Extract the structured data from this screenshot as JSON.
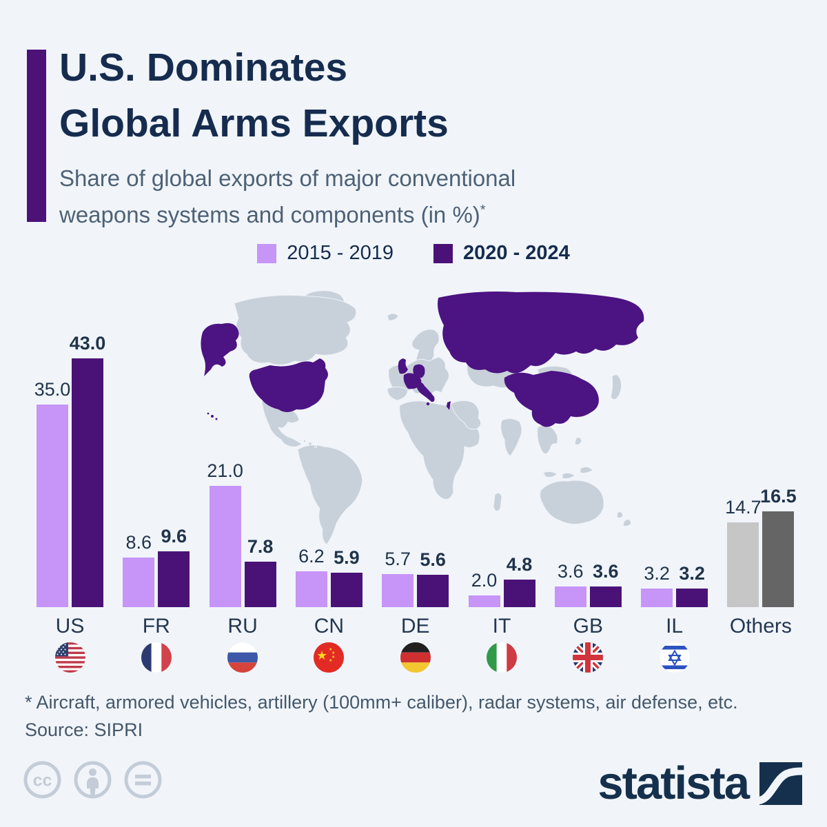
{
  "header": {
    "title_line1": "U.S. Dominates",
    "title_line2": "Global Arms Exports",
    "subtitle_line1": "Share of global exports of major conventional",
    "subtitle_line2": "weapons systems and components (in %)",
    "subtitle_footnote_marker": "*"
  },
  "legend": {
    "items": [
      {
        "label": "2015 - 2019",
        "color": "#c794f8",
        "bold": false
      },
      {
        "label": "2020 - 2024",
        "color": "#4a1277",
        "bold": true
      }
    ]
  },
  "chart_data": {
    "type": "bar",
    "categories": [
      "US",
      "FR",
      "RU",
      "CN",
      "DE",
      "IT",
      "GB",
      "IL",
      "Others"
    ],
    "series": [
      {
        "name": "2015 - 2019",
        "color": "#c794f8",
        "values": [
          35.0,
          8.6,
          21.0,
          6.2,
          5.7,
          2.0,
          3.6,
          3.2,
          14.7
        ]
      },
      {
        "name": "2020 - 2024",
        "color": "#4a1277",
        "values": [
          43.0,
          9.6,
          7.8,
          5.9,
          5.6,
          4.8,
          3.6,
          3.2,
          16.5
        ]
      }
    ],
    "others_colors": [
      "#c6c6c6",
      "#656565"
    ],
    "value_labels": "one decimal above each bar",
    "ylim": [
      0,
      45
    ],
    "grid": false,
    "legend_position": "top-center",
    "flags": [
      "us-flag",
      "fr-flag",
      "ru-flag",
      "cn-flag",
      "de-flag",
      "it-flag",
      "gb-flag",
      "il-flag",
      null
    ],
    "map_highlighted_countries": [
      "United States",
      "France",
      "Russia",
      "China",
      "Germany",
      "Italy",
      "United Kingdom",
      "Israel"
    ]
  },
  "colors": {
    "background": "#f1f5fa",
    "accent_bar": "#4c1277",
    "series1": "#c794f8",
    "series2": "#4a1277",
    "title_text": "#162c4e",
    "subtitle_text": "#4e6175",
    "map_land": "#c8d1da",
    "map_highlight": "#4c1382",
    "license_icon": "#c3ccd7",
    "brand_navy": "#15304c"
  },
  "footer": {
    "footnote": "* Aircraft, armored vehicles, artillery (100mm+ caliber), radar systems, air defense, etc.",
    "source": "Source: SIPRI",
    "license_icons": [
      "cc-icon",
      "attribution-icon",
      "nd-icon"
    ],
    "brand": "statista"
  }
}
